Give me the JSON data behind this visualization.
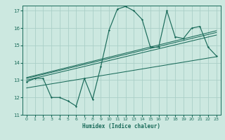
{
  "xlabel": "Humidex (Indice chaleur)",
  "xlim": [
    -0.5,
    23.5
  ],
  "ylim": [
    11,
    17.3
  ],
  "xticks": [
    0,
    1,
    2,
    3,
    4,
    5,
    6,
    7,
    8,
    9,
    10,
    11,
    12,
    13,
    14,
    15,
    16,
    17,
    18,
    19,
    20,
    21,
    22,
    23
  ],
  "yticks": [
    11,
    12,
    13,
    14,
    15,
    16,
    17
  ],
  "bg_color": "#cce8e0",
  "grid_color": "#aacfc8",
  "line_color": "#1a6b5a",
  "zigzag": {
    "x": [
      0,
      1,
      2,
      3,
      4,
      5,
      6,
      7,
      8,
      9,
      10,
      11,
      12,
      13,
      14,
      15,
      16,
      17,
      18,
      19,
      20,
      21,
      22,
      23
    ],
    "y": [
      12.9,
      13.1,
      13.1,
      12.0,
      12.0,
      11.8,
      11.5,
      13.1,
      11.9,
      13.8,
      15.9,
      17.1,
      17.25,
      17.0,
      16.5,
      14.9,
      14.9,
      17.0,
      15.5,
      15.4,
      16.0,
      16.1,
      14.9,
      14.4
    ]
  },
  "reg_lines": [
    {
      "x": [
        0,
        23
      ],
      "y": [
        13.0,
        15.6
      ]
    },
    {
      "x": [
        0,
        23
      ],
      "y": [
        13.1,
        15.75
      ]
    },
    {
      "x": [
        0,
        23
      ],
      "y": [
        13.15,
        15.85
      ]
    },
    {
      "x": [
        0,
        23
      ],
      "y": [
        12.55,
        14.35
      ]
    }
  ]
}
